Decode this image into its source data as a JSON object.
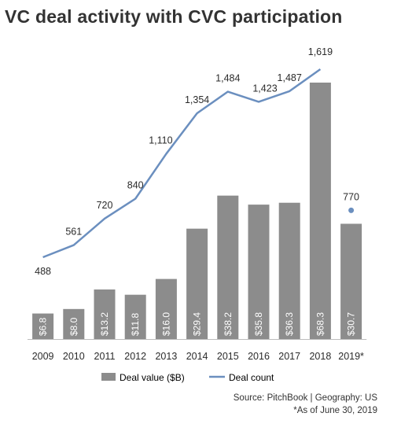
{
  "chart_data": {
    "type": "bar+line",
    "title": "VC deal activity with CVC participation",
    "categories": [
      "2009",
      "2010",
      "2011",
      "2012",
      "2013",
      "2014",
      "2015",
      "2016",
      "2017",
      "2018",
      "2019*"
    ],
    "series": [
      {
        "name": "Deal value ($B)",
        "type": "bar",
        "values": [
          6.8,
          8.0,
          13.2,
          11.8,
          16.0,
          29.4,
          38.2,
          35.8,
          36.3,
          68.3,
          30.7
        ],
        "labels": [
          "$6.8",
          "$8.0",
          "$13.2",
          "$11.8",
          "$16.0",
          "$29.4",
          "$38.2",
          "$35.8",
          "$36.3",
          "$68.3",
          "$30.7"
        ],
        "color": "#8c8c8c"
      },
      {
        "name": "Deal count",
        "type": "line",
        "values": [
          488,
          561,
          720,
          840,
          1110,
          1354,
          1484,
          1423,
          1487,
          1619,
          770
        ],
        "labels": [
          "488",
          "561",
          "720",
          "840",
          "1,110",
          "1,354",
          "1,484",
          "1,423",
          "1,487",
          "1,619",
          "770"
        ],
        "note": "2019* shown as a separate point, not connected to the line",
        "color": "#6b8fbf"
      }
    ],
    "legend": {
      "placement": "bottom-center",
      "items": [
        "Deal value ($B)",
        "Deal count"
      ]
    },
    "grid": false
  },
  "source": {
    "line1": "Source: PitchBook | Geography: US",
    "line2": "*As of June 30, 2019"
  }
}
